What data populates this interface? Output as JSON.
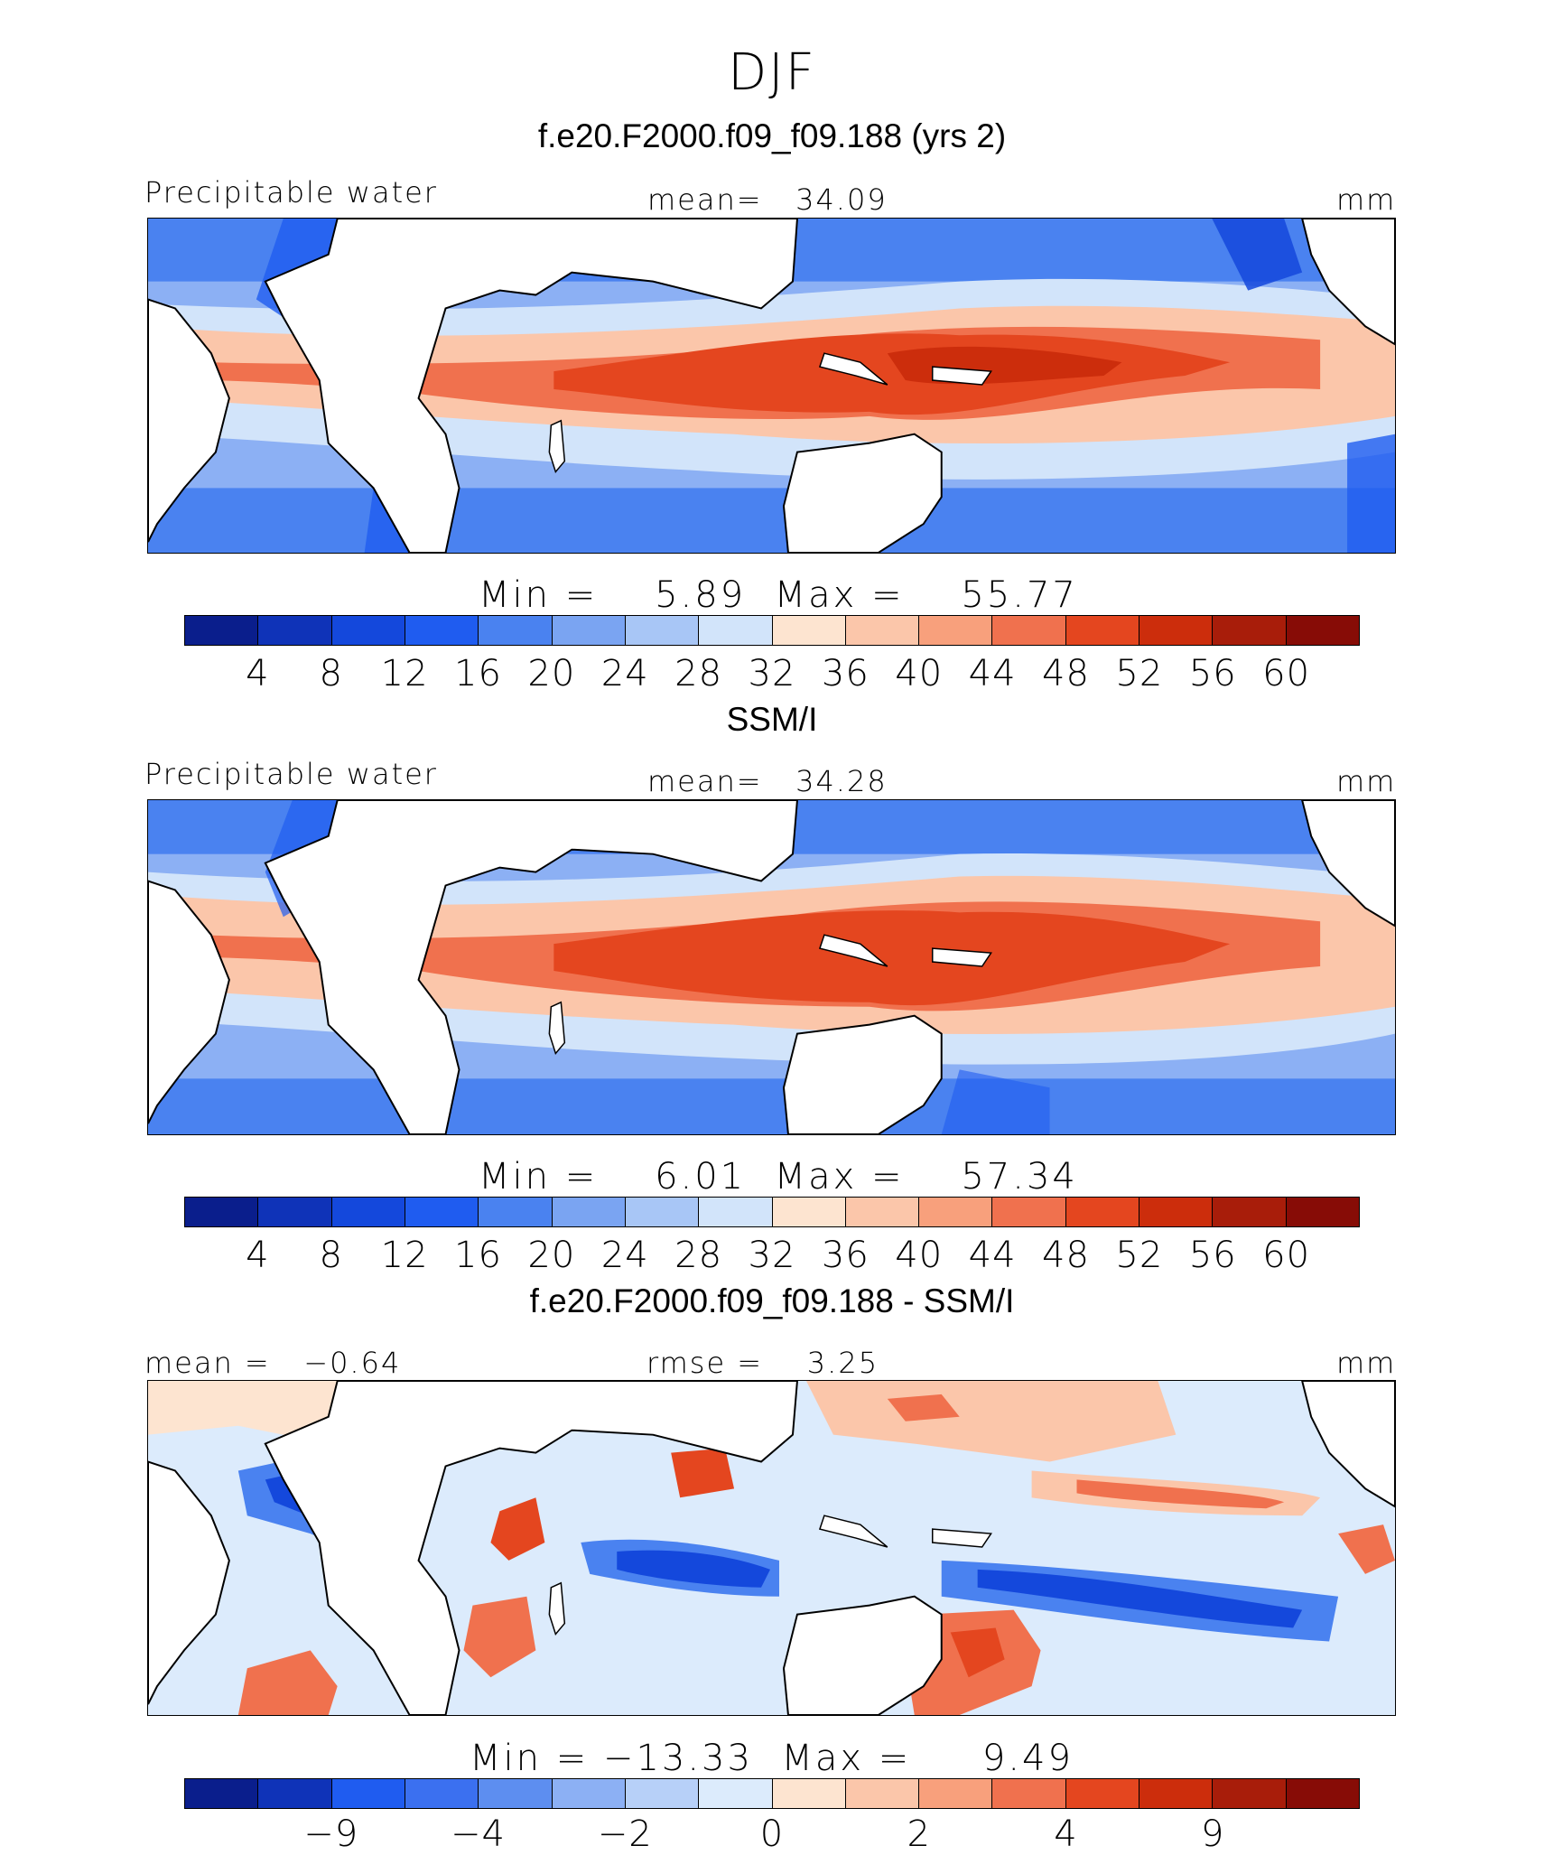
{
  "title": "DJF",
  "palette_abs": [
    "#0a1e8c",
    "#0f33b8",
    "#1448dc",
    "#1f5cf0",
    "#4a82f0",
    "#7aa4f2",
    "#a8c6f6",
    "#d2e4fa",
    "#fde4d0",
    "#fbc6aa",
    "#f8a07c",
    "#f0714e",
    "#e4461f",
    "#cc2d0c",
    "#a81d0a",
    "#870c06"
  ],
  "palette_diff": [
    "#0a1e8c",
    "#0f33b8",
    "#1f5cf0",
    "#3b70f0",
    "#5d8ef0",
    "#8cb0f4",
    "#b7d0f8",
    "#dcebfc",
    "#fde4d0",
    "#fbc6aa",
    "#f8a07c",
    "#f0714e",
    "#e4461f",
    "#cc2d0c",
    "#a81d0a",
    "#870c06"
  ],
  "panels": [
    {
      "title": "f.e20.F2000.f09_f09.188 (yrs 2)",
      "left_label": "Precipitable water",
      "center_label": "mean=   34.09",
      "units": "mm",
      "minmax": "Min =    5.89  Max =    55.77",
      "ticks": [
        "4",
        "8",
        "12",
        "16",
        "20",
        "24",
        "28",
        "32",
        "36",
        "40",
        "44",
        "48",
        "52",
        "56",
        "60"
      ]
    },
    {
      "title": "SSM/I",
      "left_label": "Precipitable water",
      "center_label": "mean=   34.28",
      "units": "mm",
      "minmax": "Min =    6.01  Max =    57.34",
      "ticks": [
        "4",
        "8",
        "12",
        "16",
        "20",
        "24",
        "28",
        "32",
        "36",
        "40",
        "44",
        "48",
        "52",
        "56",
        "60"
      ]
    },
    {
      "title": "f.e20.F2000.f09_f09.188 - SSM/I",
      "left_label": "mean =   −0.64",
      "center_label": "rmse =    3.25",
      "units": "mm",
      "minmax": "Min = −13.33  Max =     9.49",
      "ticks": [
        "−9",
        "−4",
        "−2",
        "0",
        "2",
        "4",
        "9"
      ]
    }
  ]
}
